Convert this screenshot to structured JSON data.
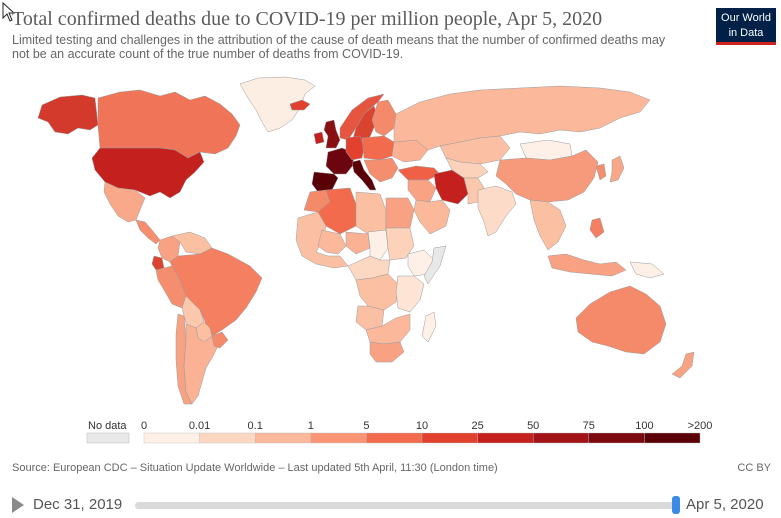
{
  "header": {
    "title": "Total confirmed deaths due to COVID-19 per million people, Apr 5, 2020",
    "subtitle": "Limited testing and challenges in the attribution of the cause of death means that the number of confirmed deaths may not be an accurate count of the true number of deaths from COVID-19."
  },
  "logo": {
    "line1": "Our World",
    "line2": "in Data"
  },
  "legend": {
    "no_data_label": "No data",
    "no_data_color": "#e8e8e8",
    "ticks": [
      "0",
      "0.01",
      "0.1",
      "1",
      "5",
      "10",
      "25",
      "50",
      "75",
      "100",
      ">200"
    ],
    "colors": [
      "#fef0e6",
      "#fcd7c2",
      "#fbb89a",
      "#f99574",
      "#f26b4c",
      "#e2412f",
      "#c4201e",
      "#a11316",
      "#7b0a10",
      "#5a0007"
    ]
  },
  "footer": {
    "source": "Source: European CDC – Situation Update Worldwide – Last updated 5th April, 11:30 (London time)",
    "license": "CC BY"
  },
  "timeline": {
    "start_date": "Dec 31, 2019",
    "end_date": "Apr 5, 2020",
    "position": 1.0
  },
  "map": {
    "regions": [
      {
        "name": "Greenland",
        "color": "#fdeee4"
      },
      {
        "name": "Alaska",
        "color": "#d33a2c"
      },
      {
        "name": "Canada",
        "color": "#f07558"
      },
      {
        "name": "United States",
        "color": "#c4201e"
      },
      {
        "name": "Mexico",
        "color": "#f9a98a"
      },
      {
        "name": "Central America",
        "color": "#f58d6e"
      },
      {
        "name": "Colombia",
        "color": "#f8a283"
      },
      {
        "name": "Venezuela",
        "color": "#fbbfa2"
      },
      {
        "name": "Ecuador",
        "color": "#d9432f"
      },
      {
        "name": "Peru",
        "color": "#f58e6f"
      },
      {
        "name": "Brazil",
        "color": "#f47f61"
      },
      {
        "name": "Bolivia",
        "color": "#fcc8ad"
      },
      {
        "name": "Paraguay",
        "color": "#fbbfa2"
      },
      {
        "name": "Argentina",
        "color": "#fbb194"
      },
      {
        "name": "Chile",
        "color": "#f7a283"
      },
      {
        "name": "Uruguay",
        "color": "#f58a6b"
      },
      {
        "name": "Iceland",
        "color": "#e2412f"
      },
      {
        "name": "United Kingdom",
        "color": "#8a0f12"
      },
      {
        "name": "Ireland",
        "color": "#c4201e"
      },
      {
        "name": "Norway",
        "color": "#e55540"
      },
      {
        "name": "Sweden",
        "color": "#d9432f"
      },
      {
        "name": "Finland",
        "color": "#f58a6b"
      },
      {
        "name": "France",
        "color": "#6d0510"
      },
      {
        "name": "Spain",
        "color": "#5a0007"
      },
      {
        "name": "Italy",
        "color": "#5a0007"
      },
      {
        "name": "Germany",
        "color": "#e2412f"
      },
      {
        "name": "Central Europe",
        "color": "#f26b4c"
      },
      {
        "name": "Balkans",
        "color": "#f58e6f"
      },
      {
        "name": "Russia",
        "color": "#fbb89a"
      },
      {
        "name": "Ukraine",
        "color": "#fbb194"
      },
      {
        "name": "Turkey",
        "color": "#f06047"
      },
      {
        "name": "Kazakhstan",
        "color": "#fbc0a3"
      },
      {
        "name": "Iran",
        "color": "#c4201e"
      },
      {
        "name": "Middle East",
        "color": "#f9a384"
      },
      {
        "name": "Saudi Arabia",
        "color": "#fbb89a"
      },
      {
        "name": "Central Asia",
        "color": "#fcd2bb"
      },
      {
        "name": "Mongolia",
        "color": "#fef0e6"
      },
      {
        "name": "China",
        "color": "#f79a7b"
      },
      {
        "name": "Pakistan",
        "color": "#fcc8ad"
      },
      {
        "name": "India",
        "color": "#fcdbc8"
      },
      {
        "name": "Southeast Asia",
        "color": "#fbbfa2"
      },
      {
        "name": "Korea",
        "color": "#f58e6f"
      },
      {
        "name": "Japan",
        "color": "#f8a788"
      },
      {
        "name": "Philippines",
        "color": "#f47f61"
      },
      {
        "name": "Indonesia",
        "color": "#f8a283"
      },
      {
        "name": "Papua New Guinea",
        "color": "#fef0e6"
      },
      {
        "name": "Australia",
        "color": "#f58a6b"
      },
      {
        "name": "New Zealand",
        "color": "#f7a283"
      },
      {
        "name": "Morocco",
        "color": "#f58a6b"
      },
      {
        "name": "Algeria",
        "color": "#f26b4c"
      },
      {
        "name": "Libya",
        "color": "#fbbfa2"
      },
      {
        "name": "Egypt",
        "color": "#f8a283"
      },
      {
        "name": "West Africa",
        "color": "#fbc0a3"
      },
      {
        "name": "Mali",
        "color": "#fbb89a"
      },
      {
        "name": "Niger",
        "color": "#fbb194"
      },
      {
        "name": "Chad",
        "color": "#fef0e6"
      },
      {
        "name": "Sudan",
        "color": "#fcd2bb"
      },
      {
        "name": "Ethiopia",
        "color": "#fef0e6"
      },
      {
        "name": "Somalia",
        "color": "#e8e8e8"
      },
      {
        "name": "Central Africa",
        "color": "#fcd7c2"
      },
      {
        "name": "DR Congo",
        "color": "#fbbfa2"
      },
      {
        "name": "East Africa",
        "color": "#fde4d5"
      },
      {
        "name": "Angola",
        "color": "#fbc0a3"
      },
      {
        "name": "Southern Africa",
        "color": "#fbb89a"
      },
      {
        "name": "South Africa",
        "color": "#f8a283"
      },
      {
        "name": "Madagascar",
        "color": "#fef0e6"
      }
    ]
  }
}
